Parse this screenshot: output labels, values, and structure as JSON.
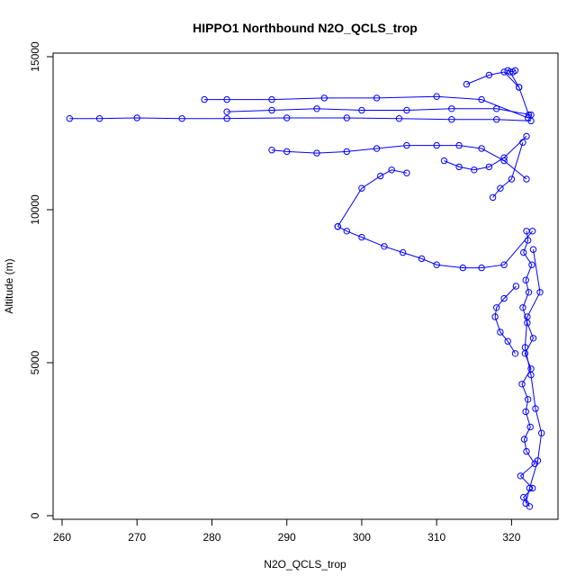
{
  "chart_data": {
    "type": "scatter",
    "title": "HIPPO1 Northbound N2O_QCLS_trop",
    "xlabel": "N2O_QCLS_trop",
    "ylabel": "Altitude (m)",
    "xlim": [
      260,
      325
    ],
    "ylim": [
      0,
      15000
    ],
    "xticks": [
      260,
      270,
      280,
      290,
      300,
      310,
      320
    ],
    "yticks": [
      0,
      5000,
      10000,
      15000
    ],
    "grid": false,
    "legend": "none",
    "marker": "open-circle",
    "connected": true,
    "color": "#0000ff",
    "series": [
      {
        "x": [
          322.4,
          321.6,
          322.8,
          321.2,
          323.1,
          322.0,
          321.7,
          322.5,
          321.9,
          322.2,
          321.4,
          322.6,
          321.8,
          322.9,
          322.1,
          321.5,
          322.3,
          321.9,
          322.7,
          321.6,
          322.2,
          322.0
        ],
        "y": [
          300,
          600,
          900,
          1300,
          1700,
          2100,
          2500,
          2900,
          3400,
          3800,
          4300,
          4800,
          5300,
          5800,
          6300,
          6800,
          7300,
          7700,
          8200,
          8600,
          9000,
          9300
        ]
      },
      {
        "x": [
          322.8,
          319.0,
          316.0,
          313.5,
          310.0,
          308.0,
          305.5,
          303.0,
          300.0,
          298.0,
          296.8
        ],
        "y": [
          9300,
          8200,
          8100,
          8100,
          8200,
          8400,
          8600,
          8800,
          9100,
          9300,
          9450
        ]
      },
      {
        "x": [
          296.8,
          300.0,
          302.5,
          304.0,
          306.0
        ],
        "y": [
          9450,
          10700,
          11100,
          11300,
          11200
        ]
      },
      {
        "x": [
          322.0,
          319.0,
          316.0,
          313.0,
          310.0,
          306.0,
          302.0,
          298.0,
          294.0,
          290.0,
          288.0
        ],
        "y": [
          11000,
          11600,
          12000,
          12100,
          12100,
          12100,
          12000,
          11900,
          11850,
          11900,
          11950
        ]
      },
      {
        "x": [
          322.6,
          318.0,
          312.0,
          305.0,
          298.0,
          290.0,
          282.0,
          276.0,
          270.0,
          265.0,
          261.0
        ],
        "y": [
          12900,
          12950,
          12950,
          12980,
          13000,
          13000,
          12980,
          12980,
          13000,
          12980,
          12980
        ]
      },
      {
        "x": [
          322.2,
          316.0,
          310.0,
          302.0,
          295.0,
          288.0,
          282.0,
          279.0
        ],
        "y": [
          13000,
          13600,
          13700,
          13650,
          13650,
          13600,
          13600,
          13600
        ]
      },
      {
        "x": [
          322.6,
          318.0,
          312.0,
          306.0,
          300.0,
          294.0,
          288.0,
          282.0
        ],
        "y": [
          13100,
          13300,
          13300,
          13250,
          13250,
          13300,
          13250,
          13200
        ]
      },
      {
        "x": [
          322.3,
          321.0,
          319.0,
          317.0,
          314.0
        ],
        "y": [
          13100,
          14000,
          14500,
          14400,
          14100
        ]
      },
      {
        "x": [
          321.0,
          319.8,
          319.5,
          320.2,
          320.5
        ],
        "y": [
          14000,
          14500,
          14550,
          14500,
          14550
        ]
      },
      {
        "x": [
          322.0,
          319.0,
          317.0,
          315.0,
          313.0,
          311.0
        ],
        "y": [
          12400,
          11700,
          11400,
          11300,
          11400,
          11600
        ]
      },
      {
        "x": [
          321.5,
          320.0,
          318.5,
          317.5
        ],
        "y": [
          12200,
          11000,
          10700,
          10400
        ]
      },
      {
        "x": [
          320.6,
          319.0,
          318.0,
          317.8,
          318.5,
          319.5,
          320.5
        ],
        "y": [
          7500,
          7100,
          6800,
          6500,
          6000,
          5700,
          5300
        ]
      },
      {
        "x": [
          321.9,
          322.4,
          323.5,
          324.0,
          323.2,
          322.6,
          321.8,
          322.1,
          323.8,
          322.9
        ],
        "y": [
          400,
          900,
          1800,
          2700,
          3500,
          4600,
          5500,
          6500,
          7300,
          8700
        ]
      }
    ]
  }
}
